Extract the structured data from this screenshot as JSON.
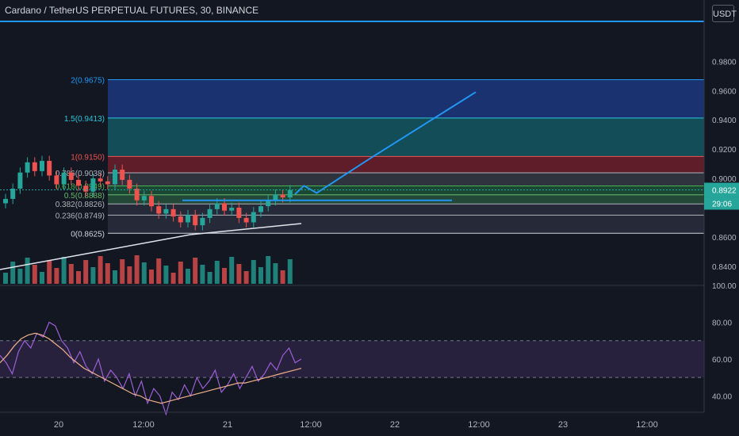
{
  "header": {
    "title": "Cardano / TetherUS PERPETUAL FUTURES, 30, BINANCE",
    "currency": "USDT"
  },
  "colors": {
    "background": "#131722",
    "up": "#26a69a",
    "down": "#ef5350",
    "projection": "#2196f3",
    "rsi": "#9c5fd6",
    "rsi_ma": "#f0b08a"
  },
  "chart_data": [
    {
      "type": "line",
      "panel": "price",
      "yaxis": {
        "ticks": [
          "0.9800",
          "0.9600",
          "0.9400",
          "0.9200",
          "0.9000",
          "0.8600",
          "0.8400"
        ],
        "ylim": [
          0.828,
          1.01
        ]
      },
      "xaxis": {
        "ticks": [
          "20",
          "12:00",
          "21",
          "12:00",
          "22",
          "12:00",
          "23",
          "12:00"
        ]
      },
      "current_price": "0.8922",
      "countdown": "29:06",
      "fib_levels": [
        {
          "label": "2(0.9675)",
          "value": 0.9675
        },
        {
          "label": "1.5(0.9413)",
          "value": 0.9413
        },
        {
          "label": "1(0.9150)",
          "value": 0.915
        },
        {
          "label": "0.786(0.9038)",
          "value": 0.9038
        },
        {
          "label": "0.618(0.8949)",
          "value": 0.8949
        },
        {
          "label": "0.5(0.8888)",
          "value": 0.8888
        },
        {
          "label": "0.382(0.8826)",
          "value": 0.8826
        },
        {
          "label": "0.236(0.8749)",
          "value": 0.8749
        },
        {
          "label": "0(0.8625)",
          "value": 0.8625
        }
      ],
      "projection": [
        {
          "t": 0.0,
          "y": 0.8892
        },
        {
          "t": 0.05,
          "y": 0.895
        },
        {
          "t": 0.12,
          "y": 0.89
        },
        {
          "t": 0.42,
          "y": 0.914
        },
        {
          "t": 1.0,
          "y": 0.959
        }
      ],
      "close": [
        0.886,
        0.893,
        0.904,
        0.911,
        0.905,
        0.912,
        0.902,
        0.896,
        0.904,
        0.899,
        0.895,
        0.891,
        0.9,
        0.898,
        0.896,
        0.906,
        0.899,
        0.893,
        0.885,
        0.888,
        0.881,
        0.876,
        0.879,
        0.874,
        0.87,
        0.875,
        0.868,
        0.873,
        0.879,
        0.883,
        0.878,
        0.88,
        0.873,
        0.87,
        0.877,
        0.881,
        0.885,
        0.889,
        0.887,
        0.892
      ]
    },
    {
      "type": "line",
      "panel": "rsi",
      "yaxis": {
        "ticks": [
          "100.00",
          "80.00",
          "60.00",
          "40.00"
        ],
        "ylim": [
          32,
          100
        ]
      },
      "upper_band": 70,
      "lower_band": 50,
      "rsi": [
        62,
        58,
        52,
        64,
        70,
        66,
        74,
        72,
        80,
        78,
        70,
        66,
        58,
        64,
        56,
        52,
        60,
        48,
        54,
        50,
        44,
        52,
        40,
        48,
        36,
        44,
        40,
        30,
        42,
        38,
        46,
        40,
        50,
        44,
        48,
        54,
        42,
        46,
        52,
        44,
        50,
        56,
        48,
        52,
        58,
        54,
        62,
        66,
        58,
        60
      ],
      "rsi_ma": [
        58,
        62,
        67,
        71,
        73,
        74,
        73,
        71,
        68,
        65,
        61,
        58,
        55,
        53,
        51,
        49,
        47,
        45,
        43,
        41,
        40,
        38,
        37,
        36,
        37,
        38,
        39,
        40,
        41,
        42,
        43,
        44,
        45,
        46,
        47,
        47,
        48,
        49,
        50,
        51,
        52,
        53,
        54,
        55
      ]
    }
  ]
}
